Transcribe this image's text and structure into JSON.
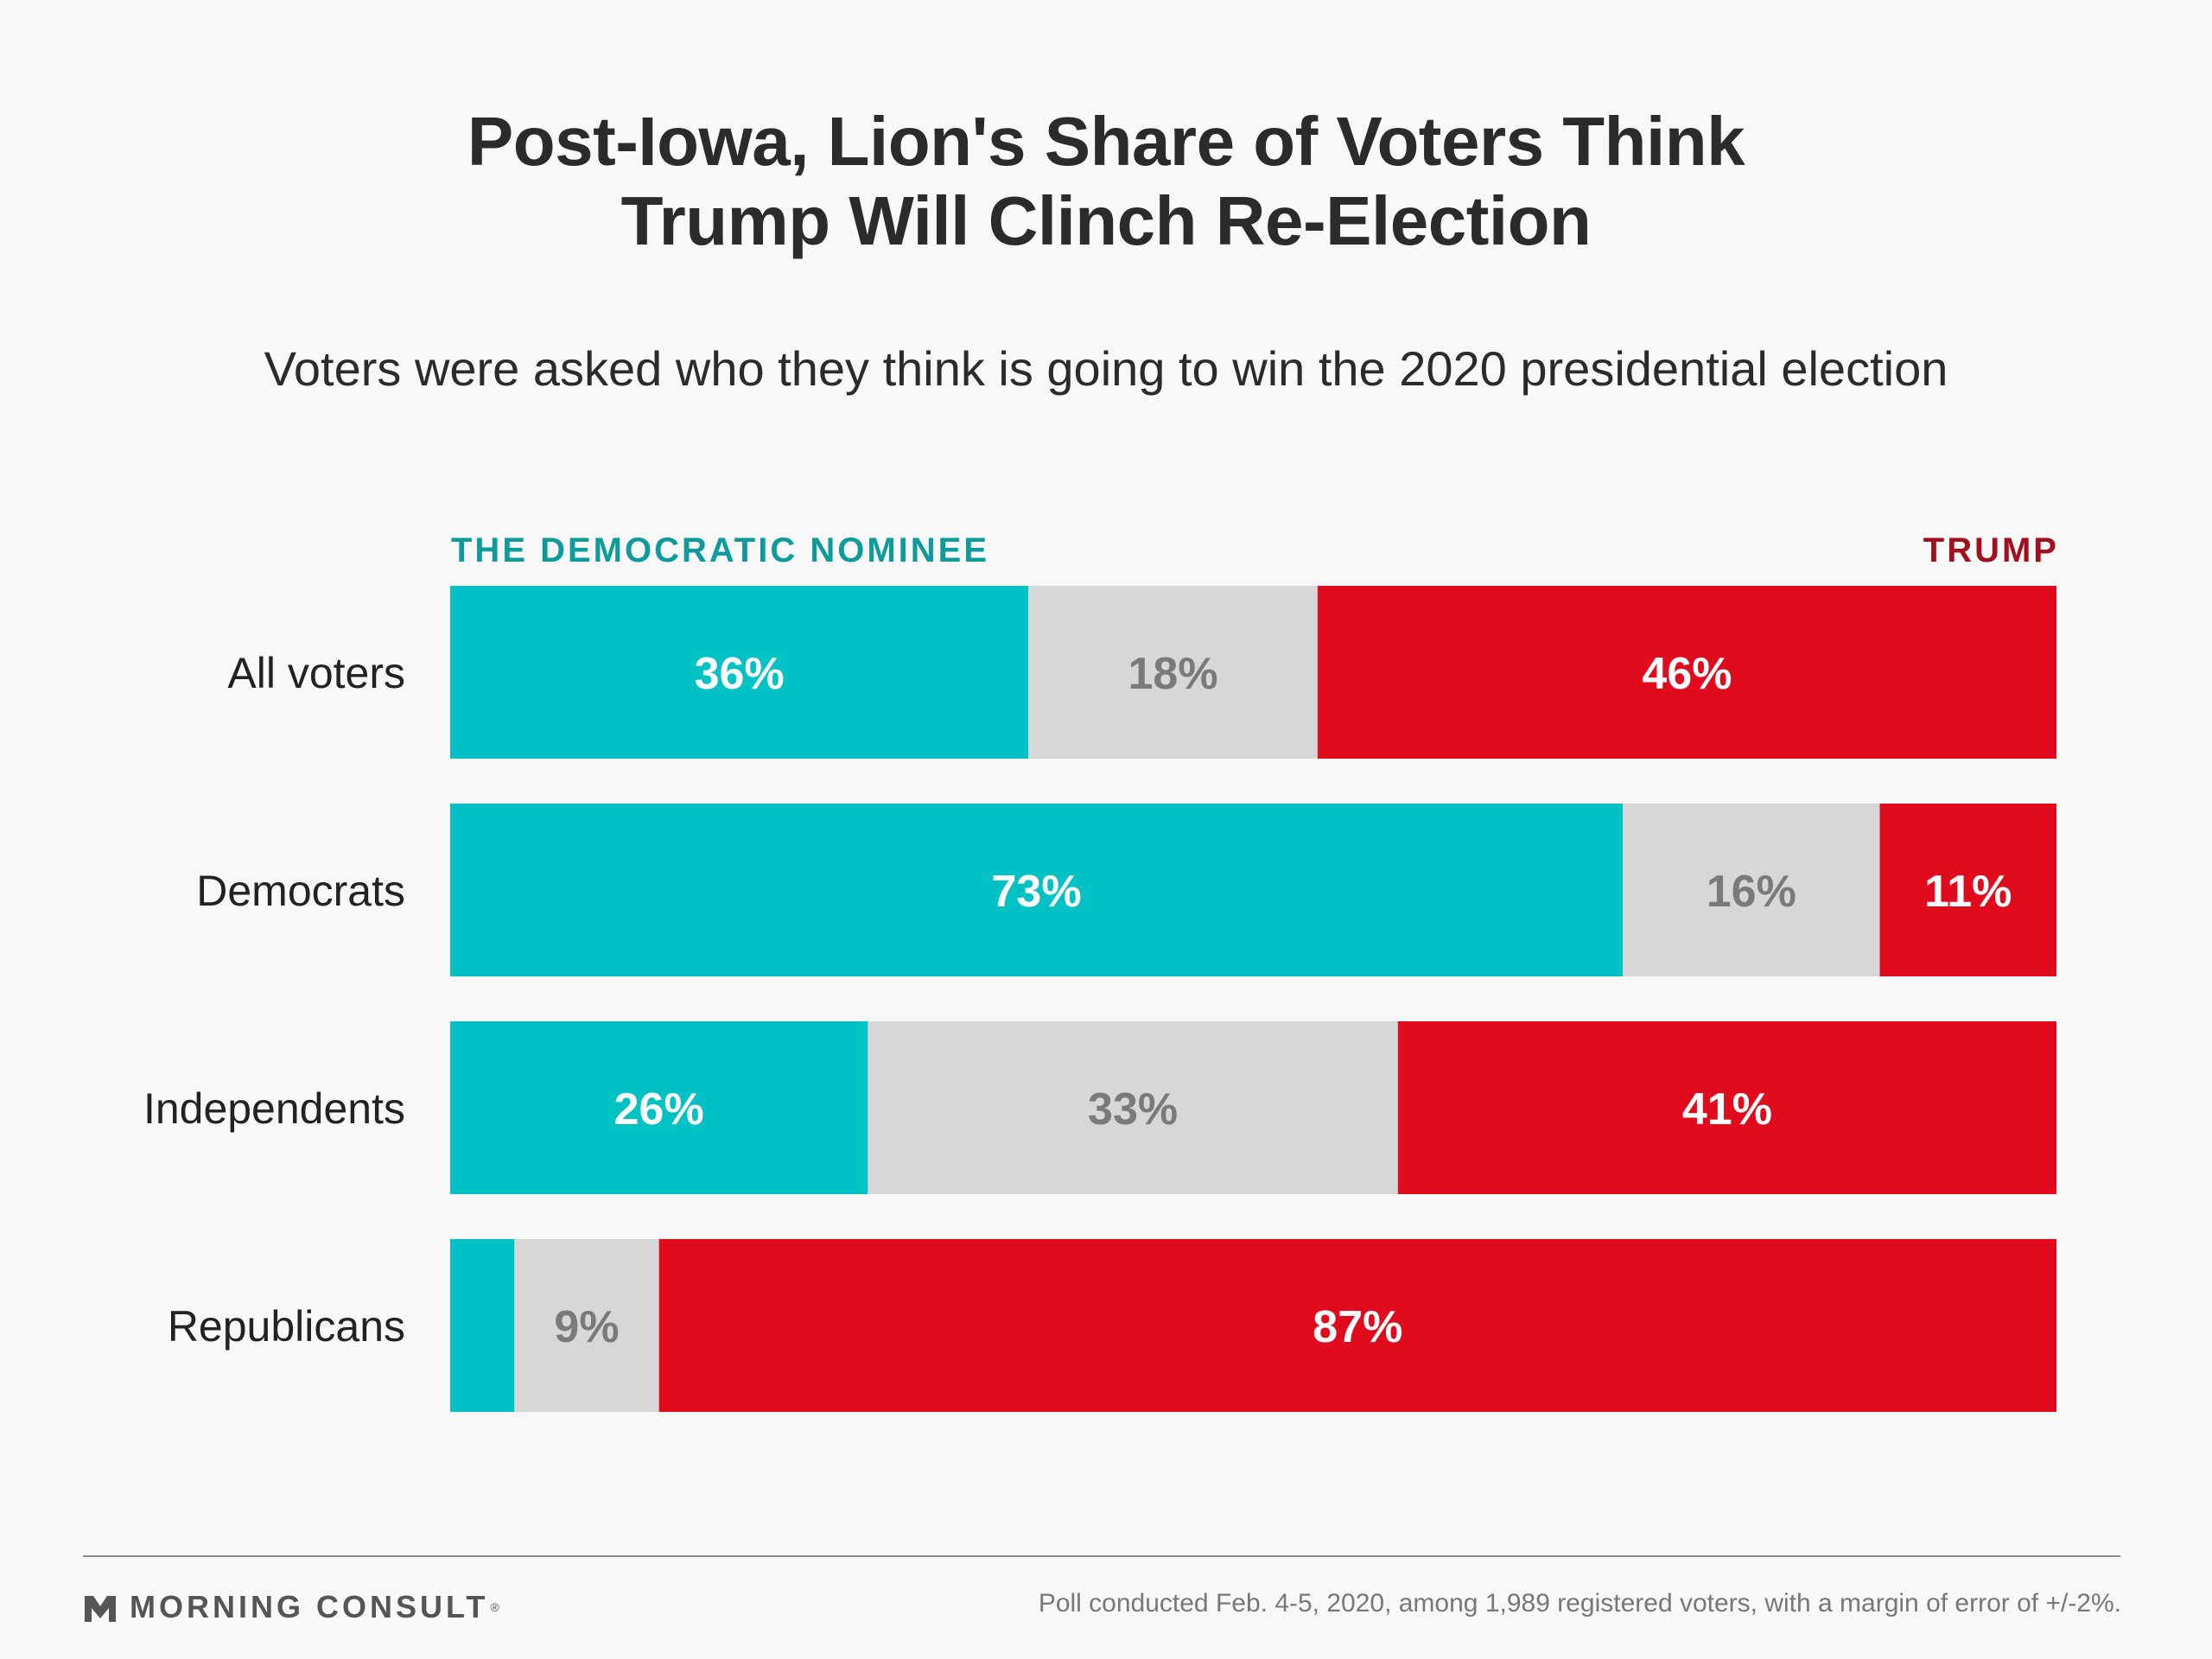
{
  "header": {
    "title_line1": "Post-Iowa, Lion's Share of Voters Think",
    "title_line2": "Trump Will Clinch Re-Election",
    "subtitle": "Voters were asked who they think is going to win the 2020 presidential election"
  },
  "legend": {
    "left": "THE DEMOCRATIC NOMINEE",
    "right": "TRUMP"
  },
  "chart_data": {
    "type": "bar",
    "orientation": "horizontal",
    "stacked": true,
    "title": "Post-Iowa, Lion's Share of Voters Think Trump Will Clinch Re-Election",
    "subtitle": "Voters were asked who they think is going to win the 2020 presidential election",
    "categories": [
      "All voters",
      "Democrats",
      "Independents",
      "Republicans"
    ],
    "series": [
      {
        "name": "THE DEMOCRATIC NOMINEE",
        "color": "#00c2c4",
        "label_color": "#ffffff",
        "values": [
          36,
          73,
          26,
          4
        ],
        "labels": [
          "36%",
          "73%",
          "26%",
          ""
        ]
      },
      {
        "name": "",
        "color": "#d7d7d7",
        "label_color": "#7a7a7a",
        "values": [
          18,
          16,
          33,
          9
        ],
        "labels": [
          "18%",
          "16%",
          "33%",
          "9%"
        ]
      },
      {
        "name": "TRUMP",
        "color": "#e00b1c",
        "label_color": "#ffffff",
        "values": [
          46,
          11,
          41,
          87
        ],
        "labels": [
          "46%",
          "11%",
          "41%",
          "87%"
        ]
      }
    ],
    "xlim": [
      0,
      100
    ],
    "grid": false,
    "legend_position": "top"
  },
  "footer": {
    "brand": "MORNING CONSULT",
    "brand_mark": "®",
    "note": "Poll conducted Feb. 4-5, 2020, among 1,989 registered voters, with a margin of error of +/-2%."
  }
}
